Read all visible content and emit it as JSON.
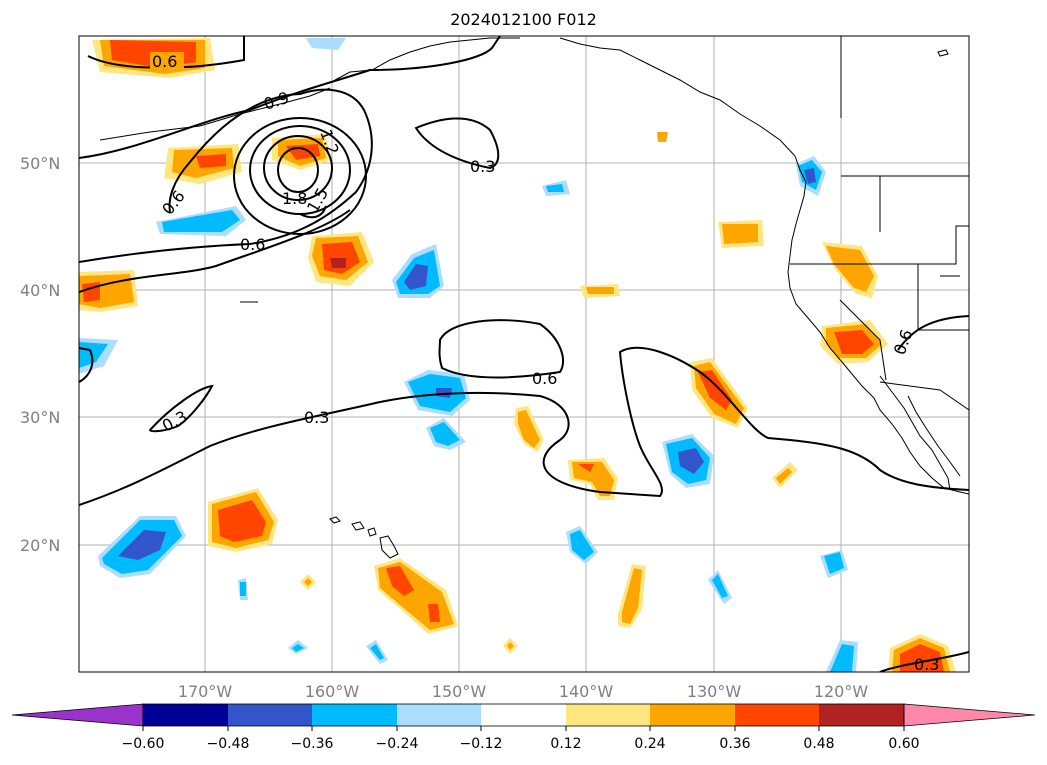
{
  "title": "2024012100 F012",
  "map": {
    "lat_labels": [
      "50°N",
      "40°N",
      "30°N",
      "20°N"
    ],
    "lon_labels": [
      "170°W",
      "160°W",
      "150°W",
      "140°W",
      "130°W",
      "120°W"
    ],
    "contour_labels": [
      "0.6",
      "0.9",
      "1.2",
      "1.5",
      "1.8",
      "0.6",
      "0.6",
      "0.3",
      "0.6",
      "0.3",
      "0.3",
      "0.3",
      "0.6"
    ]
  },
  "colorbar": {
    "tick_labels": [
      "−0.60",
      "−0.48",
      "−0.36",
      "−0.24",
      "−0.12",
      "0.12",
      "0.24",
      "0.36",
      "0.48",
      "0.60"
    ],
    "colors": [
      "#9933cc",
      "#000099",
      "#3355cc",
      "#00bbff",
      "#aaddff",
      "#ffffff",
      "#ffe680",
      "#ffa500",
      "#ff4500",
      "#b22222",
      "#ff88aa"
    ]
  }
}
